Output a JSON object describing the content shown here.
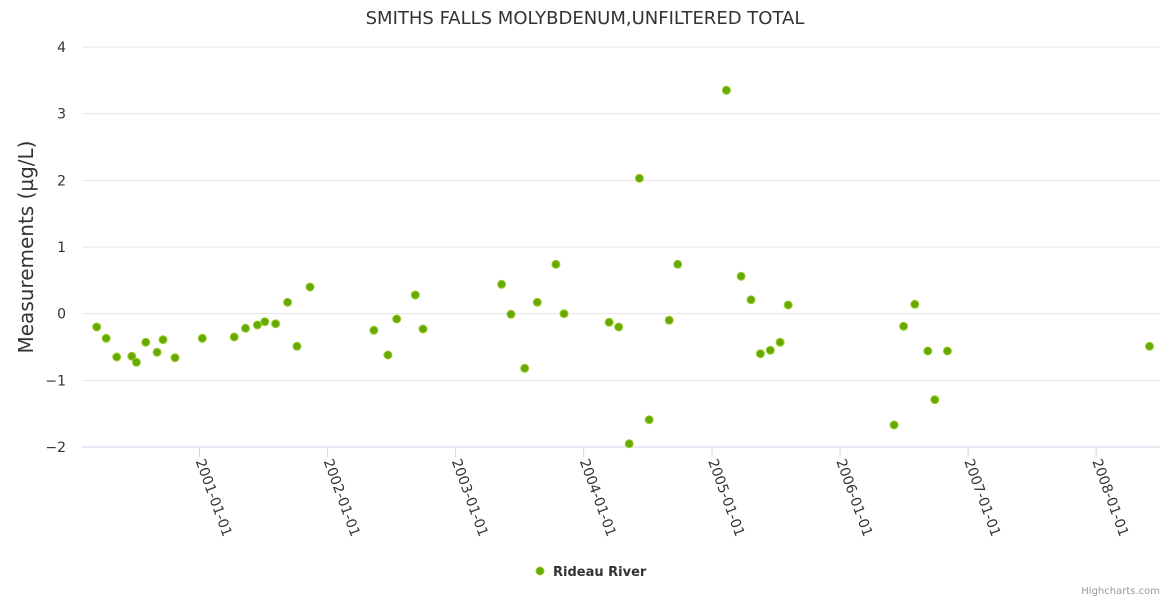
{
  "chart_data": {
    "type": "scatter",
    "title": "SMITHS FALLS MOLYBDENUM,UNFILTERED TOTAL",
    "ylabel": "Measurements (µg/L)",
    "xlabel": "",
    "ylim": [
      -2,
      4
    ],
    "yticks": [
      4,
      3,
      2,
      1,
      0,
      -1,
      -2
    ],
    "ytick_labels": [
      "4",
      "3",
      "2",
      "1",
      "0",
      "−1",
      "−2"
    ],
    "xlim": [
      "2000-02-01",
      "2008-07-01"
    ],
    "xticks": [
      "2001-01-01",
      "2002-01-01",
      "2003-01-01",
      "2004-01-01",
      "2005-01-01",
      "2006-01-01",
      "2007-01-01",
      "2008-01-01"
    ],
    "grid": true,
    "legend_position": "bottom-center",
    "series": [
      {
        "name": "Rideau River",
        "color": "#7cb5ec",
        "fill": "#66aa00",
        "stroke": "#9ccc30",
        "points": [
          {
            "x": "2000-03-14",
            "y": -0.2
          },
          {
            "x": "2000-04-10",
            "y": -0.37
          },
          {
            "x": "2000-05-10",
            "y": -0.65
          },
          {
            "x": "2000-06-22",
            "y": -0.64
          },
          {
            "x": "2000-07-05",
            "y": -0.73
          },
          {
            "x": "2000-08-01",
            "y": -0.43
          },
          {
            "x": "2000-09-02",
            "y": -0.58
          },
          {
            "x": "2000-09-19",
            "y": -0.39
          },
          {
            "x": "2000-10-23",
            "y": -0.66
          },
          {
            "x": "2001-01-09",
            "y": -0.37
          },
          {
            "x": "2001-04-10",
            "y": -0.35
          },
          {
            "x": "2001-05-12",
            "y": -0.22
          },
          {
            "x": "2001-06-15",
            "y": -0.17
          },
          {
            "x": "2001-07-06",
            "y": -0.12
          },
          {
            "x": "2001-08-06",
            "y": -0.15
          },
          {
            "x": "2001-09-09",
            "y": 0.17
          },
          {
            "x": "2001-10-06",
            "y": -0.49
          },
          {
            "x": "2001-11-12",
            "y": 0.4
          },
          {
            "x": "2002-05-13",
            "y": -0.25
          },
          {
            "x": "2002-06-22",
            "y": -0.62
          },
          {
            "x": "2002-07-17",
            "y": -0.08
          },
          {
            "x": "2002-09-08",
            "y": 0.28
          },
          {
            "x": "2002-09-30",
            "y": -0.23
          },
          {
            "x": "2003-05-12",
            "y": 0.44
          },
          {
            "x": "2003-06-08",
            "y": -0.01
          },
          {
            "x": "2003-07-17",
            "y": -0.82
          },
          {
            "x": "2003-08-22",
            "y": 0.17
          },
          {
            "x": "2003-10-14",
            "y": 0.74
          },
          {
            "x": "2003-11-06",
            "y": 0.0
          },
          {
            "x": "2004-03-14",
            "y": -0.13
          },
          {
            "x": "2004-04-10",
            "y": -0.2
          },
          {
            "x": "2004-05-10",
            "y": -1.95
          },
          {
            "x": "2004-06-08",
            "y": 2.03
          },
          {
            "x": "2004-07-06",
            "y": -1.59
          },
          {
            "x": "2004-09-01",
            "y": -0.1
          },
          {
            "x": "2004-09-25",
            "y": 0.74
          },
          {
            "x": "2005-02-11",
            "y": 3.35
          },
          {
            "x": "2005-03-25",
            "y": 0.56
          },
          {
            "x": "2005-04-22",
            "y": 0.21
          },
          {
            "x": "2005-05-19",
            "y": -0.6
          },
          {
            "x": "2005-06-16",
            "y": -0.55
          },
          {
            "x": "2005-07-14",
            "y": -0.43
          },
          {
            "x": "2005-08-06",
            "y": 0.13
          },
          {
            "x": "2006-06-04",
            "y": -1.67
          },
          {
            "x": "2006-07-01",
            "y": -0.19
          },
          {
            "x": "2006-08-02",
            "y": 0.14
          },
          {
            "x": "2006-09-08",
            "y": -0.56
          },
          {
            "x": "2006-09-28",
            "y": -1.29
          },
          {
            "x": "2006-11-03",
            "y": -0.56
          },
          {
            "x": "2008-06-01",
            "y": -0.49
          }
        ]
      }
    ],
    "credit": "Highcharts.com"
  }
}
